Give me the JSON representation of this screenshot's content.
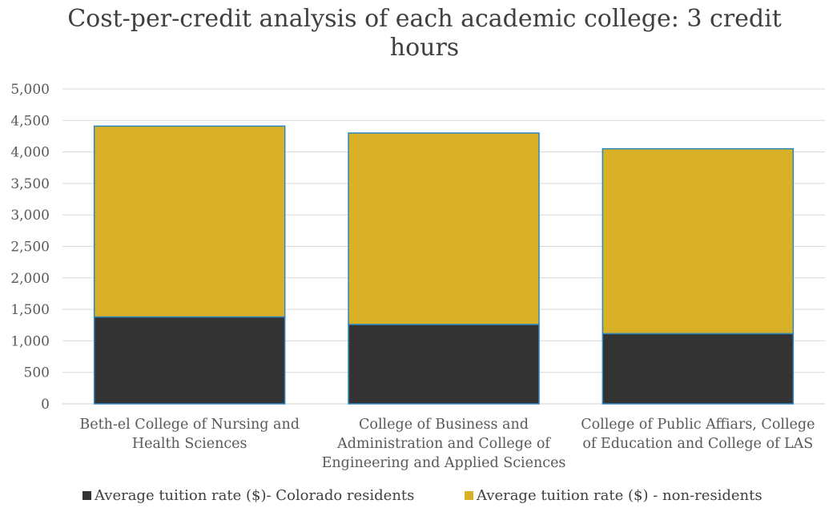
{
  "chart_data": {
    "type": "bar",
    "stacked": true,
    "title": "Cost-per-credit analysis of each academic college: 3 credit hours",
    "xlabel": "",
    "ylabel": "",
    "ylim": [
      0,
      5000
    ],
    "yticks": [
      "0",
      "500",
      "1,000",
      "1,500",
      "2,000",
      "2,500",
      "3,000",
      "3,500",
      "4,000",
      "4,500",
      "5,000"
    ],
    "yticks_values": [
      0,
      500,
      1000,
      1500,
      2000,
      2500,
      3000,
      3500,
      4000,
      4500,
      5000
    ],
    "grid": true,
    "legend_position": "bottom",
    "categories": [
      [
        "Beth-el College of Nursing and",
        "Health Sciences"
      ],
      [
        "College of Business and",
        "Administration and College of",
        "Engineering and Applied Sciences"
      ],
      [
        "College of Public Affiars, College",
        "of Education and College of LAS"
      ]
    ],
    "series": [
      {
        "name": "Average tuition rate ($)- Colorado residents",
        "color": "#333333",
        "values": [
          1380,
          1260,
          1115
        ]
      },
      {
        "name": "Average tuition rate ($) - non-residents",
        "color": "#d9b128",
        "values": [
          3030,
          3040,
          2935
        ]
      }
    ]
  }
}
